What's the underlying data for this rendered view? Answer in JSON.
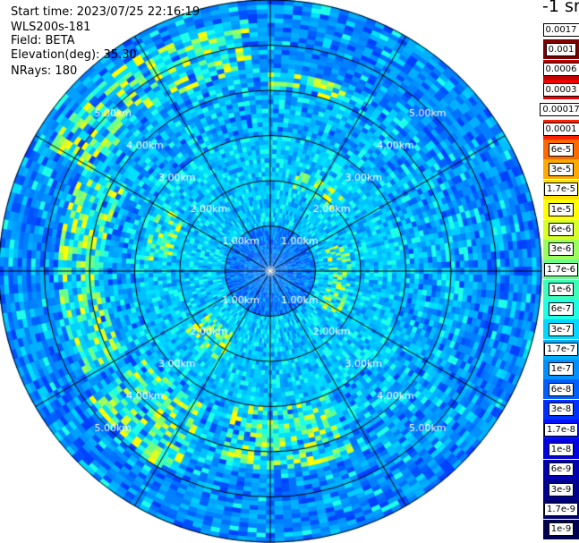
{
  "info": {
    "start_time": "Start time: 2023/07/25 22:16:19",
    "instrument": "WLS200s-181",
    "field": "Field: BETA",
    "elevation": "Elevation(deg): 35.30",
    "nrays": "NRays: 180"
  },
  "colorbar": {
    "title": "-1 sr",
    "labels": [
      "0.0017",
      "0.001",
      "0.0006",
      "0.0003",
      "0.00017",
      "0.0001",
      "6e-5",
      "3e-5",
      "1.7e-5",
      "1e-5",
      "6e-6",
      "3e-6",
      "1.7e-6",
      "1e-6",
      "6e-7",
      "3e-7",
      "1.7e-7",
      "1e-7",
      "6e-8",
      "3e-8",
      "1.7e-8",
      "1e-8",
      "6e-9",
      "3e-9",
      "1.7e-9",
      "1e-9"
    ],
    "colors": [
      "#ffffff",
      "#7f0000",
      "#c00000",
      "#f00000",
      "#ffffff",
      "#ff2000",
      "#ff6a00",
      "#ffaa00",
      "#ffe000",
      "#ffff00",
      "#d8ff26",
      "#9aff5c",
      "#6aff8a",
      "#3cffbc",
      "#1effe8",
      "#00d8ff",
      "#00b0ff",
      "#0090ff",
      "#0060ff",
      "#0030ff",
      "#0010ff",
      "#0000e0",
      "#0000b0",
      "#000090",
      "#000070",
      "#000050"
    ]
  },
  "chart_data": {
    "type": "heatmap",
    "projection": "polar (PPI scan)",
    "field": "BETA",
    "nrays": 180,
    "elevation_deg": 35.3,
    "range_rings_km": [
      1.0,
      2.0,
      3.0,
      4.0,
      5.0
    ],
    "ring_labels": [
      "1.00km",
      "2.00km",
      "3.00km",
      "4.00km",
      "5.00km"
    ],
    "max_range_km": 6.0,
    "azimuth_spokes_deg": [
      0,
      30,
      60,
      90,
      120,
      150,
      180,
      210,
      240,
      270,
      300,
      330
    ],
    "enhanced_regions": [
      {
        "az_from": 300,
        "az_to": 355,
        "r_from_km": 4.4,
        "r_to_km": 5.6
      },
      {
        "az_from": 0,
        "az_to": 22,
        "r_from_km": 4.0,
        "r_to_km": 4.4
      },
      {
        "az_from": 240,
        "az_to": 300,
        "r_from_km": 3.7,
        "r_to_km": 4.7
      },
      {
        "az_from": 205,
        "az_to": 235,
        "r_from_km": 3.3,
        "r_to_km": 5.0
      },
      {
        "az_from": 155,
        "az_to": 195,
        "r_from_km": 3.0,
        "r_to_km": 4.4
      },
      {
        "az_from": 210,
        "az_to": 235,
        "r_from_km": 1.6,
        "r_to_km": 2.3
      },
      {
        "az_from": 15,
        "az_to": 45,
        "r_from_km": 1.9,
        "r_to_km": 2.3
      },
      {
        "az_from": 70,
        "az_to": 125,
        "r_from_km": 1.3,
        "r_to_km": 1.8
      },
      {
        "az_from": 275,
        "az_to": 300,
        "r_from_km": 2.2,
        "r_to_km": 2.8
      }
    ]
  }
}
